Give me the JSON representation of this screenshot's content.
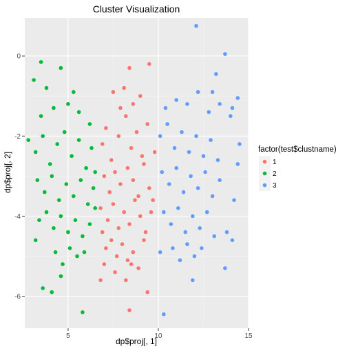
{
  "chart_data": {
    "type": "scatter",
    "title": "Cluster Visualization",
    "xlabel": "dp$proj[, 1]",
    "ylabel": "dp$proj[, 2]",
    "xlim": [
      2.6,
      15.0
    ],
    "ylim": [
      -6.8,
      0.95
    ],
    "x_ticks": [
      5,
      10,
      15
    ],
    "y_ticks": [
      0,
      -2,
      -4,
      -6
    ],
    "x_tick_labels": [
      "5",
      "10",
      "15"
    ],
    "y_tick_labels": [
      "0",
      "-2",
      "-4",
      "-6"
    ],
    "grid": true,
    "legend": {
      "title": "factor(test$clustname)",
      "placement": "right"
    },
    "series": [
      {
        "name": "1",
        "color": "#F8766D",
        "points": [
          [
            6.9,
            -2.2
          ],
          [
            7.1,
            -1.8
          ],
          [
            7.4,
            -2.6
          ],
          [
            7.8,
            -2.0
          ],
          [
            8.2,
            -1.5
          ],
          [
            8.5,
            -2.3
          ],
          [
            8.8,
            -1.9
          ],
          [
            9.1,
            -2.5
          ],
          [
            9.4,
            -1.7
          ],
          [
            7.0,
            -3.0
          ],
          [
            7.3,
            -3.4
          ],
          [
            7.6,
            -2.9
          ],
          [
            7.9,
            -3.2
          ],
          [
            8.3,
            -2.8
          ],
          [
            8.6,
            -3.1
          ],
          [
            8.9,
            -3.5
          ],
          [
            9.2,
            -2.7
          ],
          [
            9.5,
            -3.3
          ],
          [
            6.8,
            -3.8
          ],
          [
            7.2,
            -4.1
          ],
          [
            7.5,
            -3.7
          ],
          [
            7.8,
            -4.3
          ],
          [
            8.1,
            -3.9
          ],
          [
            8.4,
            -4.2
          ],
          [
            8.7,
            -3.6
          ],
          [
            9.0,
            -4.0
          ],
          [
            9.3,
            -4.4
          ],
          [
            9.6,
            -3.9
          ],
          [
            7.1,
            -4.8
          ],
          [
            7.4,
            -4.6
          ],
          [
            7.7,
            -5.0
          ],
          [
            8.0,
            -4.7
          ],
          [
            8.3,
            -5.1
          ],
          [
            8.6,
            -4.9
          ],
          [
            8.9,
            -5.3
          ],
          [
            9.2,
            -4.6
          ],
          [
            7.6,
            -5.4
          ],
          [
            8.2,
            -5.6
          ],
          [
            8.5,
            -5.2
          ],
          [
            7.9,
            -1.3
          ],
          [
            8.6,
            -1.2
          ],
          [
            9.0,
            -1.0
          ],
          [
            7.5,
            -0.9
          ],
          [
            8.1,
            -0.8
          ],
          [
            9.5,
            -0.2
          ],
          [
            8.4,
            -0.3
          ],
          [
            6.8,
            -5.6
          ],
          [
            8.4,
            -6.35
          ],
          [
            9.4,
            -5.9
          ],
          [
            7.0,
            -5.2
          ],
          [
            9.8,
            -2.4
          ],
          [
            9.7,
            -3.6
          ],
          [
            6.9,
            -4.4
          ]
        ]
      },
      {
        "name": "2",
        "color": "#00BA38",
        "points": [
          [
            3.2,
            -2.4
          ],
          [
            3.6,
            -2.0
          ],
          [
            4.0,
            -2.7
          ],
          [
            4.4,
            -2.2
          ],
          [
            4.8,
            -1.9
          ],
          [
            5.2,
            -2.5
          ],
          [
            5.6,
            -2.1
          ],
          [
            6.0,
            -2.8
          ],
          [
            6.3,
            -2.3
          ],
          [
            3.3,
            -3.1
          ],
          [
            3.7,
            -3.4
          ],
          [
            4.1,
            -3.0
          ],
          [
            4.5,
            -3.6
          ],
          [
            4.9,
            -3.2
          ],
          [
            5.3,
            -3.5
          ],
          [
            5.7,
            -3.1
          ],
          [
            6.1,
            -3.7
          ],
          [
            6.4,
            -3.3
          ],
          [
            3.4,
            -4.1
          ],
          [
            3.8,
            -3.9
          ],
          [
            4.2,
            -4.3
          ],
          [
            4.6,
            -4.0
          ],
          [
            5.0,
            -4.4
          ],
          [
            5.4,
            -4.1
          ],
          [
            5.8,
            -4.5
          ],
          [
            6.2,
            -4.2
          ],
          [
            4.3,
            -4.9
          ],
          [
            4.7,
            -5.2
          ],
          [
            5.1,
            -4.8
          ],
          [
            5.5,
            -5.0
          ],
          [
            5.9,
            -4.9
          ],
          [
            3.5,
            -1.5
          ],
          [
            4.2,
            -1.3
          ],
          [
            5.0,
            -1.2
          ],
          [
            5.6,
            -1.4
          ],
          [
            6.2,
            -1.7
          ],
          [
            3.1,
            -0.6
          ],
          [
            3.8,
            -0.8
          ],
          [
            4.6,
            -0.3
          ],
          [
            5.3,
            -0.9
          ],
          [
            4.1,
            -5.9
          ],
          [
            3.6,
            -5.8
          ],
          [
            5.8,
            -6.4
          ],
          [
            3.5,
            -0.15
          ],
          [
            2.8,
            -2.1
          ],
          [
            6.5,
            -2.9
          ],
          [
            6.5,
            -3.8
          ],
          [
            4.6,
            -5.5
          ],
          [
            3.2,
            -4.6
          ]
        ]
      },
      {
        "name": "3",
        "color": "#619CFF",
        "points": [
          [
            10.1,
            -2.0
          ],
          [
            10.5,
            -1.7
          ],
          [
            10.9,
            -2.3
          ],
          [
            11.3,
            -1.9
          ],
          [
            11.7,
            -2.4
          ],
          [
            12.1,
            -2.0
          ],
          [
            12.5,
            -2.5
          ],
          [
            12.9,
            -2.1
          ],
          [
            13.3,
            -2.6
          ],
          [
            10.2,
            -2.9
          ],
          [
            10.6,
            -3.2
          ],
          [
            11.0,
            -2.8
          ],
          [
            11.4,
            -3.4
          ],
          [
            11.8,
            -3.0
          ],
          [
            12.2,
            -3.3
          ],
          [
            12.6,
            -2.9
          ],
          [
            13.0,
            -3.5
          ],
          [
            13.4,
            -3.1
          ],
          [
            10.3,
            -3.9
          ],
          [
            10.7,
            -4.2
          ],
          [
            11.1,
            -3.8
          ],
          [
            11.5,
            -4.4
          ],
          [
            11.9,
            -4.0
          ],
          [
            12.3,
            -4.3
          ],
          [
            12.7,
            -3.9
          ],
          [
            13.1,
            -4.5
          ],
          [
            10.8,
            -4.8
          ],
          [
            11.2,
            -5.1
          ],
          [
            11.6,
            -4.7
          ],
          [
            12.0,
            -5.0
          ],
          [
            12.4,
            -4.8
          ],
          [
            10.4,
            -1.3
          ],
          [
            11.0,
            -1.1
          ],
          [
            11.6,
            -1.2
          ],
          [
            12.2,
            -0.9
          ],
          [
            12.8,
            -1.4
          ],
          [
            13.4,
            -1.2
          ],
          [
            14.0,
            -1.5
          ],
          [
            14.4,
            -1.05
          ],
          [
            13.0,
            -0.9
          ],
          [
            12.1,
            0.75
          ],
          [
            13.7,
            0.05
          ],
          [
            13.2,
            -0.45
          ],
          [
            14.1,
            -1.3
          ],
          [
            14.4,
            -2.7
          ],
          [
            14.2,
            -3.6
          ],
          [
            13.8,
            -4.4
          ],
          [
            14.1,
            -4.6
          ],
          [
            13.7,
            -5.3
          ],
          [
            11.9,
            -5.6
          ],
          [
            10.3,
            -6.45
          ],
          [
            10.1,
            -4.9
          ],
          [
            14.5,
            -2.2
          ]
        ]
      }
    ]
  }
}
